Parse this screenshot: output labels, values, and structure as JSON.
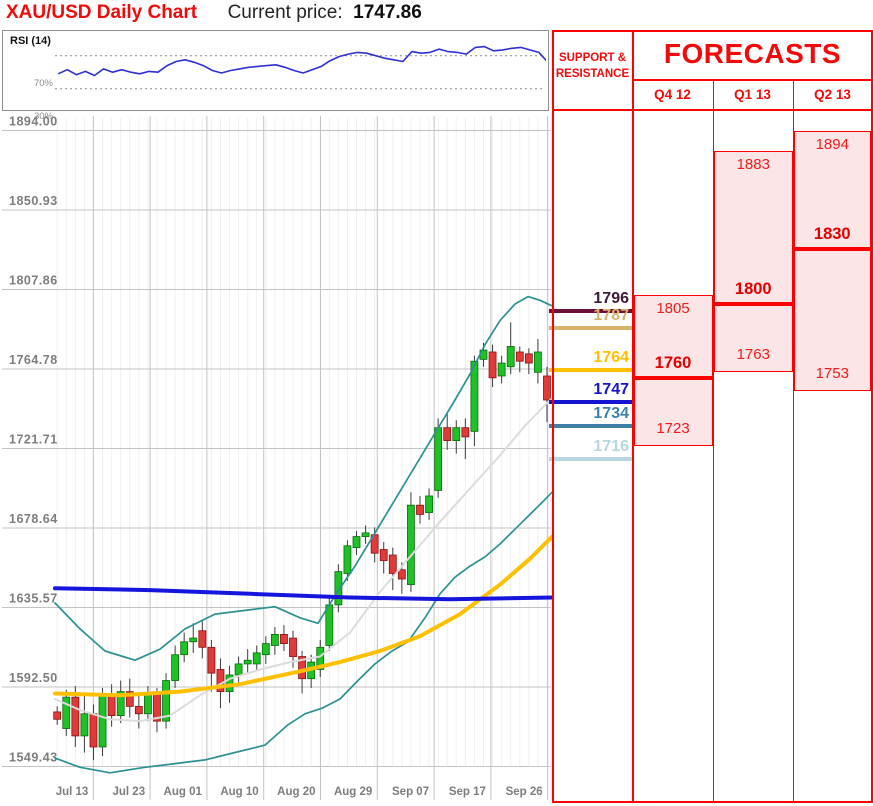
{
  "header": {
    "title": "XAU/USD Daily Chart",
    "price_label": "Current price:",
    "price_value": "1747.86"
  },
  "rsi_panel": {
    "label": "RSI (14)",
    "overbought_label": "70%",
    "oversold_label": "30%"
  },
  "table": {
    "sr_header_line1": "SUPPORT &",
    "sr_header_line2": "RESISTANCE",
    "forecasts_title": "FORECASTS"
  },
  "colors": {
    "red": "#fe0000",
    "pink_fill": "#fbe5e6",
    "value_red": "#f21b1b",
    "pivot_red": "#e40000",
    "grid": "#c3c3c3",
    "grid_minor": "#f0f0f0",
    "axis_text": "#7d7d7d",
    "candle_up": "#1ec126",
    "candle_up_edge": "#0b6b11",
    "candle_down": "#e03a3a",
    "candle_down_edge": "#8a1212",
    "wick": "#3c3c3c",
    "bollinger": "#2e9191",
    "sma20": "#dcdcdc",
    "ma_yellow": "#fec000",
    "ma_blue": "#1515dd",
    "rsi_line": "#2f2fd3"
  },
  "chart_data": {
    "type": "candlestick",
    "title": "XAU/USD Daily Chart",
    "current_price": 1747.86,
    "price_axis": {
      "ticks": [
        1894.0,
        1850.93,
        1807.86,
        1764.78,
        1721.71,
        1678.64,
        1635.57,
        1592.5,
        1549.43
      ]
    },
    "time_axis": {
      "labels": [
        "Jul 13",
        "Jul 23",
        "Aug 01",
        "Aug 10",
        "Aug 20",
        "Aug 29",
        "Sep 07",
        "Sep 17",
        "Sep 26"
      ]
    },
    "candles_ohlc": [
      [
        1579,
        1582,
        1572,
        1575
      ],
      [
        1570,
        1591,
        1566,
        1587
      ],
      [
        1587,
        1593,
        1560,
        1566
      ],
      [
        1566,
        1588,
        1557,
        1578
      ],
      [
        1578,
        1583,
        1553,
        1560
      ],
      [
        1560,
        1592,
        1555,
        1588
      ],
      [
        1588,
        1594,
        1571,
        1577
      ],
      [
        1577,
        1596,
        1573,
        1590
      ],
      [
        1590,
        1597,
        1576,
        1582
      ],
      [
        1582,
        1589,
        1570,
        1578
      ],
      [
        1578,
        1593,
        1574,
        1589
      ],
      [
        1589,
        1592,
        1568,
        1574
      ],
      [
        1574,
        1600,
        1570,
        1596
      ],
      [
        1596,
        1615,
        1592,
        1610
      ],
      [
        1610,
        1622,
        1606,
        1617
      ],
      [
        1617,
        1627,
        1611,
        1619
      ],
      [
        1623,
        1629,
        1608,
        1614
      ],
      [
        1614,
        1618,
        1590,
        1600
      ],
      [
        1602,
        1608,
        1581,
        1590
      ],
      [
        1590,
        1604,
        1584,
        1599
      ],
      [
        1599,
        1609,
        1594,
        1605
      ],
      [
        1605,
        1613,
        1600,
        1607
      ],
      [
        1605,
        1615,
        1601,
        1611
      ],
      [
        1610,
        1620,
        1605,
        1616
      ],
      [
        1615,
        1625,
        1610,
        1621
      ],
      [
        1621,
        1626,
        1612,
        1616
      ],
      [
        1619,
        1623,
        1603,
        1609
      ],
      [
        1609,
        1612,
        1589,
        1597
      ],
      [
        1597,
        1610,
        1592,
        1606
      ],
      [
        1602,
        1618,
        1598,
        1614
      ],
      [
        1615,
        1641,
        1612,
        1637
      ],
      [
        1637,
        1659,
        1633,
        1655
      ],
      [
        1654,
        1672,
        1650,
        1669
      ],
      [
        1668,
        1677,
        1664,
        1674
      ],
      [
        1674,
        1680,
        1670,
        1676
      ],
      [
        1675,
        1679,
        1660,
        1665
      ],
      [
        1667,
        1671,
        1654,
        1661
      ],
      [
        1664,
        1668,
        1645,
        1654
      ],
      [
        1656,
        1660,
        1643,
        1651
      ],
      [
        1648,
        1698,
        1644,
        1691
      ],
      [
        1691,
        1696,
        1681,
        1686
      ],
      [
        1687,
        1700,
        1683,
        1696
      ],
      [
        1699,
        1738,
        1695,
        1733
      ],
      [
        1733,
        1741,
        1721,
        1726
      ],
      [
        1726,
        1737,
        1719,
        1733
      ],
      [
        1733,
        1738,
        1716,
        1728
      ],
      [
        1731,
        1772,
        1723,
        1769
      ],
      [
        1770,
        1779,
        1766,
        1775
      ],
      [
        1774,
        1778,
        1755,
        1760
      ],
      [
        1761,
        1772,
        1757,
        1768
      ],
      [
        1766,
        1790,
        1762,
        1777
      ],
      [
        1774,
        1777,
        1763,
        1769
      ],
      [
        1773,
        1776,
        1762,
        1768
      ],
      [
        1763,
        1781,
        1757,
        1774
      ],
      [
        1761,
        1766,
        1736,
        1748
      ]
    ],
    "rsi": {
      "period": 14,
      "overbought": 70,
      "oversold": 30,
      "values": [
        48,
        53,
        47,
        51,
        46,
        54,
        50,
        53,
        50,
        48,
        51,
        50,
        58,
        63,
        65,
        62,
        58,
        52,
        49,
        52,
        54,
        56,
        57,
        58,
        59,
        56,
        52,
        49,
        53,
        57,
        64,
        69,
        72,
        74,
        73,
        70,
        67,
        65,
        63,
        75,
        73,
        74,
        78,
        75,
        74,
        72,
        80,
        81,
        76,
        77,
        79,
        80,
        77,
        74,
        62
      ]
    },
    "overlays": {
      "sma20_gray": [
        [
          55,
          1586
        ],
        [
          80,
          1580
        ],
        [
          110,
          1575
        ],
        [
          140,
          1574
        ],
        [
          170,
          1577
        ],
        [
          200,
          1588
        ],
        [
          230,
          1597
        ],
        [
          260,
          1602
        ],
        [
          290,
          1606
        ],
        [
          320,
          1609
        ],
        [
          350,
          1622
        ],
        [
          380,
          1644
        ],
        [
          410,
          1663
        ],
        [
          440,
          1682
        ],
        [
          470,
          1700
        ],
        [
          500,
          1718
        ],
        [
          525,
          1734
        ],
        [
          552,
          1749
        ]
      ],
      "ma_yellow": [
        [
          55,
          1589
        ],
        [
          120,
          1588
        ],
        [
          180,
          1590
        ],
        [
          240,
          1594
        ],
        [
          300,
          1601
        ],
        [
          340,
          1606
        ],
        [
          380,
          1612
        ],
        [
          420,
          1620
        ],
        [
          460,
          1632
        ],
        [
          500,
          1648
        ],
        [
          530,
          1662
        ],
        [
          552,
          1674
        ]
      ],
      "ma_blue": [
        [
          55,
          1646
        ],
        [
          150,
          1645
        ],
        [
          250,
          1643
        ],
        [
          350,
          1641
        ],
        [
          450,
          1640
        ],
        [
          552,
          1641
        ]
      ],
      "bb_upper": [
        [
          55,
          1638
        ],
        [
          80,
          1624
        ],
        [
          105,
          1612
        ],
        [
          135,
          1607
        ],
        [
          160,
          1613
        ],
        [
          185,
          1624
        ],
        [
          215,
          1632
        ],
        [
          245,
          1634
        ],
        [
          275,
          1636
        ],
        [
          300,
          1630
        ],
        [
          318,
          1627
        ],
        [
          335,
          1642
        ],
        [
          355,
          1658
        ],
        [
          375,
          1676
        ],
        [
          395,
          1694
        ],
        [
          415,
          1712
        ],
        [
          435,
          1730
        ],
        [
          455,
          1748
        ],
        [
          470,
          1762
        ],
        [
          485,
          1778
        ],
        [
          500,
          1791
        ],
        [
          515,
          1800
        ],
        [
          528,
          1804
        ],
        [
          540,
          1802
        ],
        [
          552,
          1799
        ]
      ],
      "bb_lower": [
        [
          55,
          1554
        ],
        [
          80,
          1549
        ],
        [
          110,
          1546
        ],
        [
          145,
          1549
        ],
        [
          175,
          1551
        ],
        [
          205,
          1553
        ],
        [
          235,
          1557
        ],
        [
          265,
          1561
        ],
        [
          288,
          1572
        ],
        [
          305,
          1578
        ],
        [
          322,
          1581
        ],
        [
          340,
          1586
        ],
        [
          358,
          1596
        ],
        [
          375,
          1605
        ],
        [
          392,
          1612
        ],
        [
          408,
          1617
        ],
        [
          425,
          1630
        ],
        [
          440,
          1643
        ],
        [
          455,
          1652
        ],
        [
          470,
          1658
        ],
        [
          485,
          1663
        ],
        [
          500,
          1670
        ],
        [
          515,
          1678
        ],
        [
          530,
          1686
        ],
        [
          543,
          1693
        ],
        [
          552,
          1698
        ]
      ]
    },
    "support_resistance": [
      {
        "label": "1796",
        "price": 1796,
        "line_color": "#6a1039",
        "text_color": "#3c1a38"
      },
      {
        "label": "1787",
        "price": 1787,
        "line_color": "#d8b46a",
        "text_color": "#d8b46a"
      },
      {
        "label": "1764",
        "price": 1764,
        "line_color": "#fec000",
        "text_color": "#fec000"
      },
      {
        "label": "1747",
        "price": 1747,
        "line_color": "#1414d2",
        "text_color": "#1414d2"
      },
      {
        "label": "1734",
        "price": 1734,
        "line_color": "#3e81a8",
        "text_color": "#3e81a8"
      },
      {
        "label": "1716",
        "price": 1716,
        "line_color": "#b6d7de",
        "text_color": "#b6d7de"
      }
    ],
    "forecasts": [
      {
        "quarter": "Q4 12",
        "high": 1805,
        "pivot": 1760,
        "low": 1723
      },
      {
        "quarter": "Q1 13",
        "high": 1883,
        "pivot": 1800,
        "low": 1763
      },
      {
        "quarter": "Q2 13",
        "high": 1894,
        "pivot": 1830,
        "low": 1753
      }
    ]
  }
}
